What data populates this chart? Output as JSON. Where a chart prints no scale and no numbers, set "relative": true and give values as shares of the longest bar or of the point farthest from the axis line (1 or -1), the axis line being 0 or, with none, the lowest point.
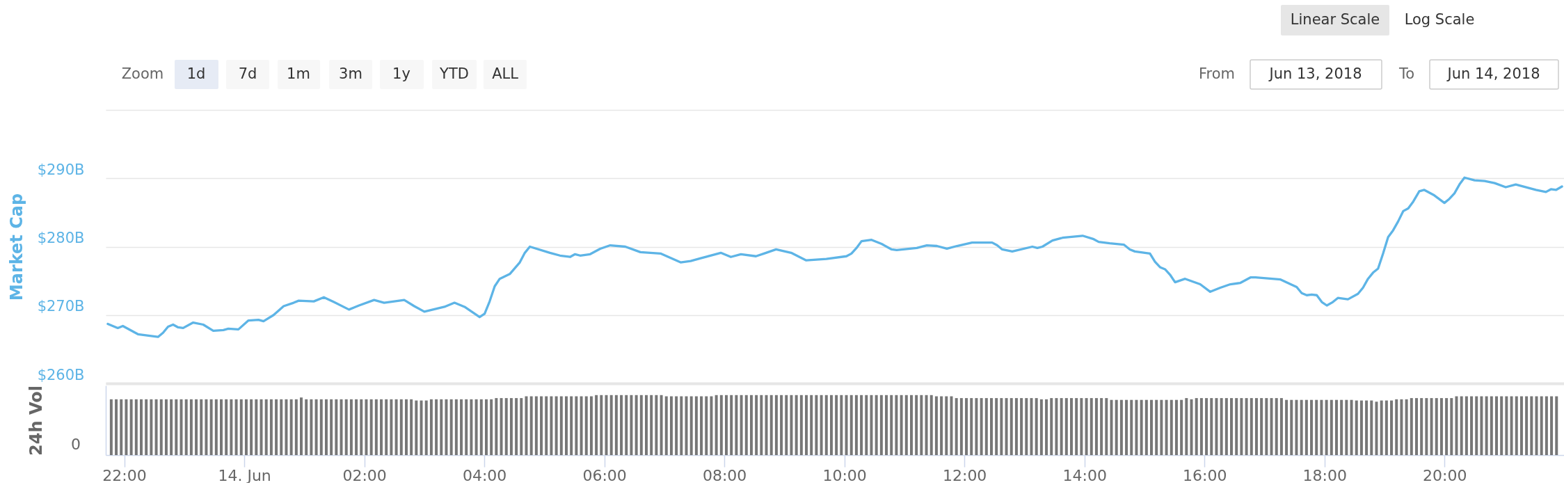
{
  "chart_data": [
    {
      "type": "line",
      "ylabel": "Market Cap",
      "tick_labels": "y",
      "grid": "y",
      "xlim": [
        "2018-06-13T21:45",
        "2018-06-14T21:56"
      ],
      "ylim": [
        260,
        300
      ],
      "yticks": [
        {
          "value": 260,
          "label": "$260B"
        },
        {
          "value": 270,
          "label": "$270B"
        },
        {
          "value": 280,
          "label": "$280B"
        },
        {
          "value": 290,
          "label": "$290B"
        },
        {
          "value": 300,
          "label": null
        }
      ],
      "annotations": [
        "Linear Scale",
        "Log Scale",
        "Zoom",
        "1d",
        "7d",
        "1m",
        "3m",
        "1y",
        "YTD",
        "ALL",
        "From",
        "Jun 13, 2018",
        "To",
        "Jun 14, 2018"
      ],
      "series": [
        {
          "color": "#5db4e6",
          "x": [
            "2018-06-13T21:47",
            "2018-06-13T21:57",
            "2018-06-13T22:02",
            "2018-06-13T22:17",
            "2018-06-13T22:37",
            "2018-06-13T22:42",
            "2018-06-13T22:47",
            "2018-06-13T22:52",
            "2018-06-13T22:57",
            "2018-06-13T23:02",
            "2018-06-13T23:12",
            "2018-06-13T23:22",
            "2018-06-13T23:32",
            "2018-06-13T23:42",
            "2018-06-13T23:47",
            "2018-06-13T23:57",
            "2018-06-14T00:07",
            "2018-06-14T00:17",
            "2018-06-14T00:22",
            "2018-06-14T00:32",
            "2018-06-14T00:42",
            "2018-06-14T00:52",
            "2018-06-14T00:57",
            "2018-06-14T01:12",
            "2018-06-14T01:22",
            "2018-06-14T01:32",
            "2018-06-14T01:47",
            "2018-06-14T01:57",
            "2018-06-14T02:12",
            "2018-06-14T02:22",
            "2018-06-14T02:42",
            "2018-06-14T02:52",
            "2018-06-14T03:02",
            "2018-06-14T03:22",
            "2018-06-14T03:32",
            "2018-06-14T03:42",
            "2018-06-14T03:57",
            "2018-06-14T04:02",
            "2018-06-14T04:07",
            "2018-06-14T04:12",
            "2018-06-14T04:17",
            "2018-06-14T04:27",
            "2018-06-14T04:37",
            "2018-06-14T04:42",
            "2018-06-14T04:47",
            "2018-06-14T05:07",
            "2018-06-14T05:17",
            "2018-06-14T05:27",
            "2018-06-14T05:32",
            "2018-06-14T05:37",
            "2018-06-14T05:47",
            "2018-06-14T05:57",
            "2018-06-14T06:07",
            "2018-06-14T06:22",
            "2018-06-14T06:37",
            "2018-06-14T06:57",
            "2018-06-14T07:17",
            "2018-06-14T07:27",
            "2018-06-14T07:37",
            "2018-06-14T07:57",
            "2018-06-14T08:07",
            "2018-06-14T08:17",
            "2018-06-14T08:32",
            "2018-06-14T08:42",
            "2018-06-14T08:52",
            "2018-06-14T09:07",
            "2018-06-14T09:22",
            "2018-06-14T09:42",
            "2018-06-14T10:02",
            "2018-06-14T10:07",
            "2018-06-14T10:12",
            "2018-06-14T10:17",
            "2018-06-14T10:27",
            "2018-06-14T10:37",
            "2018-06-14T10:47",
            "2018-06-14T10:52",
            "2018-06-14T11:12",
            "2018-06-14T11:22",
            "2018-06-14T11:32",
            "2018-06-14T11:42",
            "2018-06-14T11:52",
            "2018-06-14T12:07",
            "2018-06-14T12:27",
            "2018-06-14T12:32",
            "2018-06-14T12:37",
            "2018-06-14T12:47",
            "2018-06-14T13:07",
            "2018-06-14T13:12",
            "2018-06-14T13:17",
            "2018-06-14T13:27",
            "2018-06-14T13:37",
            "2018-06-14T13:57",
            "2018-06-14T14:08",
            "2018-06-14T14:13",
            "2018-06-14T14:24",
            "2018-06-14T14:38",
            "2018-06-14T14:44",
            "2018-06-14T14:49",
            "2018-06-14T15:04",
            "2018-06-14T15:09",
            "2018-06-14T15:14",
            "2018-06-14T15:19",
            "2018-06-14T15:24",
            "2018-06-14T15:29",
            "2018-06-14T15:39",
            "2018-06-14T15:54",
            "2018-06-14T16:04",
            "2018-06-14T16:14",
            "2018-06-14T16:24",
            "2018-06-14T16:34",
            "2018-06-14T16:44",
            "2018-06-14T16:49",
            "2018-06-14T17:14",
            "2018-06-14T17:24",
            "2018-06-14T17:30",
            "2018-06-14T17:35",
            "2018-06-14T17:40",
            "2018-06-14T17:45",
            "2018-06-14T17:50",
            "2018-06-14T17:55",
            "2018-06-14T18:00",
            "2018-06-14T18:06",
            "2018-06-14T18:11",
            "2018-06-14T18:21",
            "2018-06-14T18:31",
            "2018-06-14T18:36",
            "2018-06-14T18:41",
            "2018-06-14T18:46",
            "2018-06-14T18:51",
            "2018-06-14T18:56",
            "2018-06-14T19:01",
            "2018-06-14T19:06",
            "2018-06-14T19:11",
            "2018-06-14T19:16",
            "2018-06-14T19:21",
            "2018-06-14T19:26",
            "2018-06-14T19:32",
            "2018-06-14T19:37",
            "2018-06-14T19:47",
            "2018-06-14T19:57",
            "2018-06-14T20:02",
            "2018-06-14T20:07",
            "2018-06-14T20:12",
            "2018-06-14T20:17",
            "2018-06-14T20:27",
            "2018-06-14T20:37",
            "2018-06-14T20:47",
            "2018-06-14T20:58",
            "2018-06-14T21:08",
            "2018-06-14T21:28",
            "2018-06-14T21:38",
            "2018-06-14T21:43",
            "2018-06-14T21:48",
            "2018-06-14T21:54"
          ],
          "values": [
            268.7,
            268.1,
            268.4,
            267.2,
            266.8,
            267.4,
            268.3,
            268.6,
            268.2,
            268.1,
            268.9,
            268.6,
            267.7,
            267.8,
            268.0,
            267.9,
            269.2,
            269.3,
            269.1,
            270.0,
            271.3,
            271.8,
            272.1,
            272.0,
            272.6,
            271.9,
            270.8,
            271.4,
            272.2,
            271.8,
            272.2,
            271.3,
            270.5,
            271.2,
            271.8,
            271.2,
            269.7,
            270.2,
            272.0,
            274.2,
            275.3,
            276.0,
            277.7,
            279.1,
            280.0,
            279.1,
            278.7,
            278.5,
            278.9,
            278.7,
            278.9,
            279.7,
            280.2,
            280.0,
            279.2,
            279.0,
            277.7,
            277.9,
            278.3,
            279.1,
            278.5,
            278.9,
            278.6,
            279.1,
            279.6,
            279.1,
            278.0,
            278.2,
            278.6,
            279.0,
            279.8,
            280.8,
            281.0,
            280.4,
            279.6,
            279.5,
            279.8,
            280.2,
            280.1,
            279.7,
            280.1,
            280.6,
            280.6,
            280.2,
            279.6,
            279.3,
            280.0,
            279.8,
            280.0,
            280.9,
            281.3,
            281.6,
            281.1,
            280.7,
            280.5,
            280.3,
            279.6,
            279.3,
            279.0,
            277.8,
            277.0,
            276.7,
            275.9,
            274.8,
            275.3,
            274.5,
            273.4,
            274.0,
            274.5,
            274.7,
            275.5,
            275.5,
            275.2,
            274.5,
            274.1,
            273.2,
            272.9,
            273.0,
            272.9,
            271.9,
            271.4,
            271.9,
            272.5,
            272.3,
            273.1,
            274.0,
            275.3,
            276.2,
            276.8,
            279.0,
            281.4,
            282.4,
            283.7,
            285.2,
            285.6,
            286.6,
            288.1,
            288.3,
            287.5,
            286.4,
            287.0,
            287.8,
            289.1,
            290.1,
            289.7,
            289.6,
            289.3,
            288.7,
            289.1,
            288.3,
            288.0,
            288.4,
            288.3,
            288.8
          ]
        }
      ]
    },
    {
      "type": "bar",
      "ylabel": "24h Vol",
      "relative": true,
      "tick_labels": "x",
      "xlim": [
        "2018-06-13T21:45",
        "2018-06-14T21:56"
      ],
      "xticks": [
        {
          "value": "2018-06-13T22:00",
          "label": "22:00"
        },
        {
          "value": "2018-06-14T00:00",
          "label": "14. Jun"
        },
        {
          "value": "2018-06-14T02:00",
          "label": "02:00"
        },
        {
          "value": "2018-06-14T04:00",
          "label": "04:00"
        },
        {
          "value": "2018-06-14T06:00",
          "label": "06:00"
        },
        {
          "value": "2018-06-14T08:00",
          "label": "08:00"
        },
        {
          "value": "2018-06-14T10:00",
          "label": "10:00"
        },
        {
          "value": "2018-06-14T12:00",
          "label": "12:00"
        },
        {
          "value": "2018-06-14T14:00",
          "label": "14:00"
        },
        {
          "value": "2018-06-14T16:00",
          "label": "16:00"
        },
        {
          "value": "2018-06-14T18:00",
          "label": "18:00"
        },
        {
          "value": "2018-06-14T20:00",
          "label": "20:00"
        }
      ],
      "annotations": [
        "0"
      ],
      "x": [
        "2018-06-13T21:47",
        "2018-06-13T21:52",
        "2018-06-13T21:57",
        "2018-06-13T22:02",
        "2018-06-13T22:07",
        "2018-06-13T22:12",
        "2018-06-13T22:17",
        "2018-06-13T22:22",
        "2018-06-13T22:27",
        "2018-06-13T22:32",
        "2018-06-13T22:37",
        "2018-06-13T22:42",
        "2018-06-13T22:47",
        "2018-06-13T22:52",
        "2018-06-13T22:57",
        "2018-06-13T23:02",
        "2018-06-13T23:07",
        "2018-06-13T23:12",
        "2018-06-13T23:17",
        "2018-06-13T23:22",
        "2018-06-13T23:27",
        "2018-06-13T23:32",
        "2018-06-13T23:37",
        "2018-06-13T23:42",
        "2018-06-13T23:47",
        "2018-06-13T23:52",
        "2018-06-13T23:57",
        "2018-06-14T00:02",
        "2018-06-14T00:07",
        "2018-06-14T00:12",
        "2018-06-14T00:17",
        "2018-06-14T00:22",
        "2018-06-14T00:27",
        "2018-06-14T00:32",
        "2018-06-14T00:37",
        "2018-06-14T00:42",
        "2018-06-14T00:47",
        "2018-06-14T00:52",
        "2018-06-14T00:57",
        "2018-06-14T01:02",
        "2018-06-14T01:07",
        "2018-06-14T01:12",
        "2018-06-14T01:17",
        "2018-06-14T01:22",
        "2018-06-14T01:27",
        "2018-06-14T01:32",
        "2018-06-14T01:37",
        "2018-06-14T01:42",
        "2018-06-14T01:47",
        "2018-06-14T01:52",
        "2018-06-14T01:57",
        "2018-06-14T02:02",
        "2018-06-14T02:07",
        "2018-06-14T02:12",
        "2018-06-14T02:17",
        "2018-06-14T02:22",
        "2018-06-14T02:27",
        "2018-06-14T02:32",
        "2018-06-14T02:37",
        "2018-06-14T02:42",
        "2018-06-14T02:47",
        "2018-06-14T02:52",
        "2018-06-14T02:57",
        "2018-06-14T03:02",
        "2018-06-14T03:07",
        "2018-06-14T03:12",
        "2018-06-14T03:17",
        "2018-06-14T03:22",
        "2018-06-14T03:27",
        "2018-06-14T03:32",
        "2018-06-14T03:37",
        "2018-06-14T03:42",
        "2018-06-14T03:47",
        "2018-06-14T03:52",
        "2018-06-14T03:57",
        "2018-06-14T04:02",
        "2018-06-14T04:07",
        "2018-06-14T04:12",
        "2018-06-14T04:17",
        "2018-06-14T04:22",
        "2018-06-14T04:27",
        "2018-06-14T04:32",
        "2018-06-14T04:37",
        "2018-06-14T04:42",
        "2018-06-14T04:47",
        "2018-06-14T04:52",
        "2018-06-14T04:57",
        "2018-06-14T05:02",
        "2018-06-14T05:07",
        "2018-06-14T05:12",
        "2018-06-14T05:17",
        "2018-06-14T05:22",
        "2018-06-14T05:27",
        "2018-06-14T05:32",
        "2018-06-14T05:37",
        "2018-06-14T05:42",
        "2018-06-14T05:47",
        "2018-06-14T05:52",
        "2018-06-14T05:57",
        "2018-06-14T06:02",
        "2018-06-14T06:07",
        "2018-06-14T06:12",
        "2018-06-14T06:17",
        "2018-06-14T06:22",
        "2018-06-14T06:27",
        "2018-06-14T06:32",
        "2018-06-14T06:37",
        "2018-06-14T06:42",
        "2018-06-14T06:47",
        "2018-06-14T06:52",
        "2018-06-14T06:57",
        "2018-06-14T07:02",
        "2018-06-14T07:07",
        "2018-06-14T07:12",
        "2018-06-14T07:17",
        "2018-06-14T07:22",
        "2018-06-14T07:27",
        "2018-06-14T07:32",
        "2018-06-14T07:37",
        "2018-06-14T07:42",
        "2018-06-14T07:47",
        "2018-06-14T07:52",
        "2018-06-14T07:57",
        "2018-06-14T08:02",
        "2018-06-14T08:07",
        "2018-06-14T08:12",
        "2018-06-14T08:17",
        "2018-06-14T08:22",
        "2018-06-14T08:27",
        "2018-06-14T08:32",
        "2018-06-14T08:37",
        "2018-06-14T08:42",
        "2018-06-14T08:47",
        "2018-06-14T08:52",
        "2018-06-14T08:57",
        "2018-06-14T09:02",
        "2018-06-14T09:07",
        "2018-06-14T09:12",
        "2018-06-14T09:17",
        "2018-06-14T09:22",
        "2018-06-14T09:27",
        "2018-06-14T09:32",
        "2018-06-14T09:37",
        "2018-06-14T09:42",
        "2018-06-14T09:47",
        "2018-06-14T09:52",
        "2018-06-14T09:57",
        "2018-06-14T10:02",
        "2018-06-14T10:07",
        "2018-06-14T10:12",
        "2018-06-14T10:17",
        "2018-06-14T10:22",
        "2018-06-14T10:27",
        "2018-06-14T10:32",
        "2018-06-14T10:37",
        "2018-06-14T10:42",
        "2018-06-14T10:47",
        "2018-06-14T10:52",
        "2018-06-14T10:57",
        "2018-06-14T11:02",
        "2018-06-14T11:07",
        "2018-06-14T11:12",
        "2018-06-14T11:17",
        "2018-06-14T11:22",
        "2018-06-14T11:27",
        "2018-06-14T11:32",
        "2018-06-14T11:37",
        "2018-06-14T11:42",
        "2018-06-14T11:47",
        "2018-06-14T11:52",
        "2018-06-14T11:57",
        "2018-06-14T12:02",
        "2018-06-14T12:07",
        "2018-06-14T12:12",
        "2018-06-14T12:17",
        "2018-06-14T12:22",
        "2018-06-14T12:27",
        "2018-06-14T12:32",
        "2018-06-14T12:37",
        "2018-06-14T12:42",
        "2018-06-14T12:47",
        "2018-06-14T12:52",
        "2018-06-14T12:57",
        "2018-06-14T13:02",
        "2018-06-14T13:07",
        "2018-06-14T13:12",
        "2018-06-14T13:17",
        "2018-06-14T13:22",
        "2018-06-14T13:27",
        "2018-06-14T13:32",
        "2018-06-14T13:37",
        "2018-06-14T13:42",
        "2018-06-14T13:47",
        "2018-06-14T13:52",
        "2018-06-14T13:57",
        "2018-06-14T14:02",
        "2018-06-14T14:07",
        "2018-06-14T14:12",
        "2018-06-14T14:17",
        "2018-06-14T14:22",
        "2018-06-14T14:27",
        "2018-06-14T14:32",
        "2018-06-14T14:37",
        "2018-06-14T14:42",
        "2018-06-14T14:47",
        "2018-06-14T14:52",
        "2018-06-14T14:57",
        "2018-06-14T15:02",
        "2018-06-14T15:07",
        "2018-06-14T15:12",
        "2018-06-14T15:17",
        "2018-06-14T15:22",
        "2018-06-14T15:27",
        "2018-06-14T15:32",
        "2018-06-14T15:37",
        "2018-06-14T15:42",
        "2018-06-14T15:47",
        "2018-06-14T15:52",
        "2018-06-14T15:57",
        "2018-06-14T16:02",
        "2018-06-14T16:07",
        "2018-06-14T16:12",
        "2018-06-14T16:17",
        "2018-06-14T16:22",
        "2018-06-14T16:27",
        "2018-06-14T16:32",
        "2018-06-14T16:37",
        "2018-06-14T16:42",
        "2018-06-14T16:47",
        "2018-06-14T16:52",
        "2018-06-14T16:57",
        "2018-06-14T17:02",
        "2018-06-14T17:07",
        "2018-06-14T17:12",
        "2018-06-14T17:17",
        "2018-06-14T17:22",
        "2018-06-14T17:27",
        "2018-06-14T17:32",
        "2018-06-14T17:37",
        "2018-06-14T17:42",
        "2018-06-14T17:47",
        "2018-06-14T17:52",
        "2018-06-14T17:57",
        "2018-06-14T18:02",
        "2018-06-14T18:07",
        "2018-06-14T18:12",
        "2018-06-14T18:17",
        "2018-06-14T18:22",
        "2018-06-14T18:27",
        "2018-06-14T18:32",
        "2018-06-14T18:37",
        "2018-06-14T18:42",
        "2018-06-14T18:47",
        "2018-06-14T18:52",
        "2018-06-14T18:57",
        "2018-06-14T19:02",
        "2018-06-14T19:07",
        "2018-06-14T19:12",
        "2018-06-14T19:17",
        "2018-06-14T19:22",
        "2018-06-14T19:27",
        "2018-06-14T19:32",
        "2018-06-14T19:37",
        "2018-06-14T19:42",
        "2018-06-14T19:47",
        "2018-06-14T19:52",
        "2018-06-14T19:57",
        "2018-06-14T20:02",
        "2018-06-14T20:07",
        "2018-06-14T20:12",
        "2018-06-14T20:17",
        "2018-06-14T20:22",
        "2018-06-14T20:27",
        "2018-06-14T20:32",
        "2018-06-14T20:37",
        "2018-06-14T20:42",
        "2018-06-14T20:47",
        "2018-06-14T20:52",
        "2018-06-14T20:57",
        "2018-06-14T21:02",
        "2018-06-14T21:07",
        "2018-06-14T21:12",
        "2018-06-14T21:17",
        "2018-06-14T21:22",
        "2018-06-14T21:27",
        "2018-06-14T21:32",
        "2018-06-14T21:37",
        "2018-06-14T21:42",
        "2018-06-14T21:47",
        "2018-06-14T21:52"
      ],
      "series": [
        {
          "color": "#777777",
          "values": [
            0.93,
            0.93,
            0.93,
            0.93,
            0.93,
            0.93,
            0.93,
            0.93,
            0.93,
            0.93,
            0.93,
            0.93,
            0.93,
            0.93,
            0.93,
            0.93,
            0.93,
            0.93,
            0.93,
            0.93,
            0.93,
            0.93,
            0.93,
            0.93,
            0.93,
            0.93,
            0.93,
            0.93,
            0.93,
            0.93,
            0.93,
            0.93,
            0.93,
            0.93,
            0.93,
            0.93,
            0.93,
            0.93,
            0.96,
            0.93,
            0.93,
            0.93,
            0.93,
            0.93,
            0.93,
            0.93,
            0.93,
            0.93,
            0.93,
            0.93,
            0.93,
            0.93,
            0.93,
            0.93,
            0.93,
            0.93,
            0.93,
            0.93,
            0.93,
            0.93,
            0.93,
            0.91,
            0.91,
            0.91,
            0.93,
            0.93,
            0.93,
            0.93,
            0.93,
            0.93,
            0.93,
            0.93,
            0.93,
            0.93,
            0.93,
            0.93,
            0.93,
            0.95,
            0.95,
            0.95,
            0.95,
            0.95,
            0.95,
            0.98,
            0.98,
            0.98,
            0.98,
            0.98,
            0.98,
            0.98,
            0.98,
            0.98,
            0.98,
            0.98,
            0.98,
            0.98,
            0.98,
            1,
            1,
            1,
            1,
            1,
            1,
            1,
            1,
            1,
            1,
            1,
            1,
            1,
            1,
            0.98,
            0.98,
            0.98,
            0.98,
            0.98,
            0.98,
            0.98,
            0.98,
            0.98,
            0.98,
            1,
            1,
            1,
            1,
            1,
            1,
            1,
            1,
            1,
            1,
            1,
            1,
            1,
            1,
            1,
            1,
            1,
            1,
            1,
            1,
            1,
            1,
            1,
            1,
            1,
            1,
            1,
            1,
            1,
            1,
            1,
            1,
            1,
            1,
            1,
            1,
            1,
            1,
            1,
            1,
            1,
            1,
            1,
            1,
            0.98,
            0.98,
            0.98,
            0.98,
            0.95,
            0.95,
            0.95,
            0.95,
            0.95,
            0.95,
            0.95,
            0.95,
            0.95,
            0.95,
            0.95,
            0.95,
            0.95,
            0.95,
            0.95,
            0.95,
            0.95,
            0.93,
            0.93,
            0.95,
            0.95,
            0.95,
            0.95,
            0.95,
            0.95,
            0.95,
            0.95,
            0.95,
            0.95,
            0.95,
            0.95,
            0.92,
            0.92,
            0.92,
            0.92,
            0.92,
            0.92,
            0.92,
            0.92,
            0.92,
            0.92,
            0.92,
            0.92,
            0.92,
            0.92,
            0.92,
            0.95,
            0.93,
            0.95,
            0.95,
            0.95,
            0.95,
            0.95,
            0.95,
            0.95,
            0.95,
            0.95,
            0.95,
            0.95,
            0.95,
            0.95,
            0.95,
            0.95,
            0.95,
            0.95,
            0.95,
            0.92,
            0.92,
            0.92,
            0.92,
            0.92,
            0.92,
            0.92,
            0.92,
            0.92,
            0.92,
            0.92,
            0.92,
            0.92,
            0.92,
            0.91,
            0.91,
            0.91,
            0.91,
            0.89,
            0.91,
            0.91,
            0.91,
            0.93,
            0.93,
            0.93,
            0.95,
            0.95,
            0.95,
            0.95,
            0.95,
            0.95,
            0.95,
            0.95,
            0.95,
            0.98,
            0.98,
            0.98,
            0.98,
            0.98,
            0.98,
            0.98,
            0.98,
            0.98,
            0.98,
            0.98,
            0.98,
            0.98,
            0.98,
            0.98,
            0.98,
            0.98,
            0.98,
            0.98,
            0.98,
            0.98
          ]
        }
      ]
    }
  ]
}
